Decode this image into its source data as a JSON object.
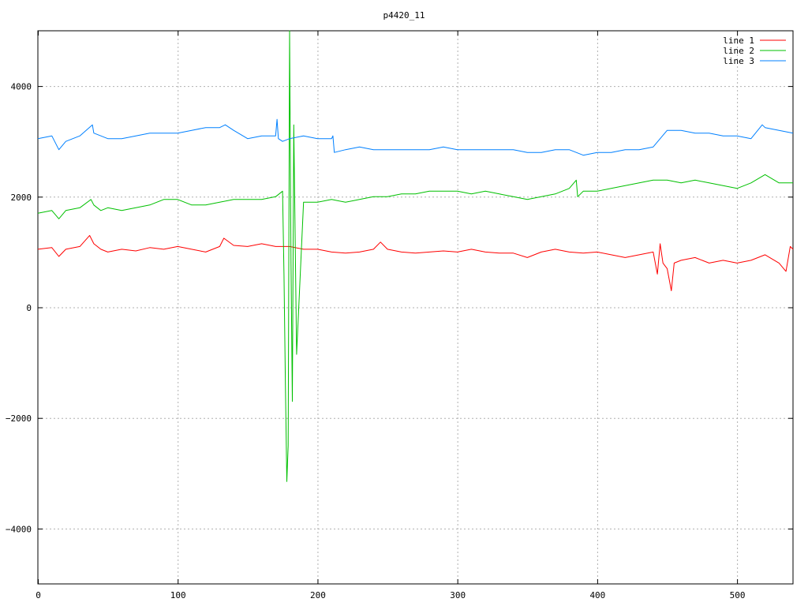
{
  "chart_data": {
    "type": "line",
    "title": "p4420_11",
    "xlabel": "",
    "ylabel": "",
    "xlim": [
      0,
      540
    ],
    "ylim": [
      -5000,
      5000
    ],
    "xticks": [
      0,
      100,
      200,
      300,
      400,
      500
    ],
    "yticks": [
      -4000,
      -2000,
      0,
      2000,
      4000
    ],
    "grid": true,
    "legend_position": "top-right",
    "series": [
      {
        "name": "line 1",
        "color": "#ff0000",
        "x": [
          0,
          10,
          15,
          20,
          30,
          37,
          40,
          45,
          50,
          60,
          70,
          80,
          90,
          100,
          110,
          120,
          130,
          133,
          140,
          150,
          160,
          170,
          180,
          190,
          200,
          210,
          220,
          230,
          240,
          245,
          250,
          260,
          270,
          280,
          290,
          300,
          310,
          320,
          330,
          340,
          350,
          360,
          370,
          380,
          390,
          400,
          410,
          420,
          430,
          440,
          443,
          445,
          447,
          450,
          453,
          455,
          460,
          470,
          480,
          490,
          500,
          510,
          520,
          530,
          535,
          538,
          540
        ],
        "y": [
          1050,
          1080,
          920,
          1050,
          1100,
          1300,
          1150,
          1050,
          1000,
          1050,
          1020,
          1080,
          1050,
          1100,
          1050,
          1000,
          1100,
          1250,
          1120,
          1100,
          1150,
          1100,
          1100,
          1050,
          1050,
          1000,
          980,
          1000,
          1050,
          1180,
          1050,
          1000,
          980,
          1000,
          1020,
          1000,
          1050,
          1000,
          980,
          980,
          900,
          1000,
          1050,
          1000,
          980,
          1000,
          950,
          900,
          950,
          1000,
          600,
          1150,
          800,
          700,
          300,
          800,
          850,
          900,
          800,
          850,
          800,
          850,
          950,
          800,
          650,
          1100,
          1050
        ]
      },
      {
        "name": "line 2",
        "color": "#00c000",
        "x": [
          0,
          10,
          15,
          20,
          30,
          38,
          40,
          45,
          50,
          60,
          70,
          80,
          90,
          100,
          110,
          120,
          130,
          140,
          150,
          160,
          170,
          175,
          176,
          177,
          178,
          179,
          180,
          181,
          182,
          183,
          185,
          190,
          200,
          210,
          220,
          230,
          240,
          250,
          260,
          270,
          280,
          290,
          300,
          310,
          320,
          330,
          340,
          350,
          360,
          370,
          380,
          385,
          386,
          390,
          400,
          410,
          420,
          430,
          440,
          450,
          460,
          470,
          480,
          490,
          500,
          510,
          520,
          530,
          540
        ],
        "y": [
          1700,
          1750,
          1600,
          1750,
          1800,
          1950,
          1850,
          1750,
          1800,
          1750,
          1800,
          1850,
          1950,
          1950,
          1850,
          1850,
          1900,
          1950,
          1950,
          1950,
          2000,
          2100,
          600,
          -1400,
          -3150,
          -2500,
          5000,
          800,
          -1700,
          3300,
          -850,
          1900,
          1900,
          1950,
          1900,
          1950,
          2000,
          2000,
          2050,
          2050,
          2100,
          2100,
          2100,
          2050,
          2100,
          2050,
          2000,
          1950,
          2000,
          2050,
          2150,
          2300,
          2000,
          2100,
          2100,
          2150,
          2200,
          2250,
          2300,
          2300,
          2250,
          2300,
          2250,
          2200,
          2150,
          2250,
          2400,
          2250,
          2250
        ]
      },
      {
        "name": "line 3",
        "color": "#0080ff",
        "x": [
          0,
          10,
          15,
          20,
          30,
          39,
          40,
          45,
          50,
          60,
          70,
          80,
          90,
          100,
          110,
          120,
          130,
          134,
          140,
          150,
          160,
          170,
          171,
          172,
          175,
          180,
          190,
          200,
          210,
          211,
          212,
          220,
          230,
          240,
          250,
          260,
          270,
          280,
          290,
          300,
          310,
          320,
          330,
          340,
          350,
          360,
          370,
          380,
          390,
          400,
          410,
          420,
          430,
          440,
          450,
          460,
          470,
          480,
          490,
          500,
          510,
          518,
          520,
          530,
          540
        ],
        "y": [
          3050,
          3100,
          2850,
          3000,
          3100,
          3300,
          3150,
          3100,
          3050,
          3050,
          3100,
          3150,
          3150,
          3150,
          3200,
          3250,
          3250,
          3300,
          3200,
          3050,
          3100,
          3100,
          3400,
          3050,
          3000,
          3050,
          3100,
          3050,
          3050,
          3100,
          2800,
          2850,
          2900,
          2850,
          2850,
          2850,
          2850,
          2850,
          2900,
          2850,
          2850,
          2850,
          2850,
          2850,
          2800,
          2800,
          2850,
          2850,
          2750,
          2800,
          2800,
          2850,
          2850,
          2900,
          3200,
          3200,
          3150,
          3150,
          3100,
          3100,
          3050,
          3300,
          3250,
          3200,
          3150
        ]
      }
    ]
  }
}
